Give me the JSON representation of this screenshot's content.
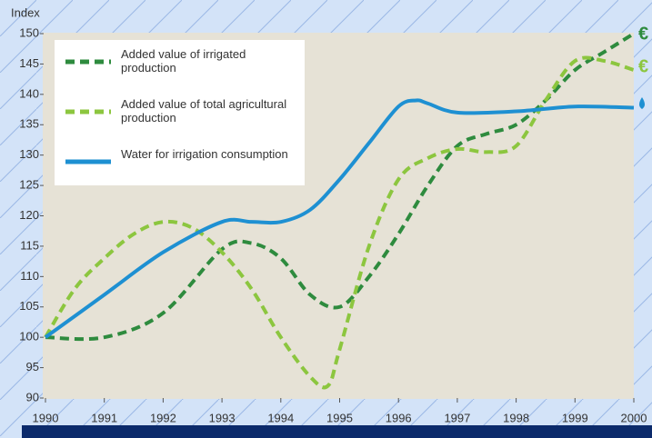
{
  "chart_data": {
    "type": "line",
    "y_label": "Index",
    "xlim": [
      1990,
      2000
    ],
    "xticks": [
      1990,
      1991,
      1992,
      1993,
      1994,
      1995,
      1996,
      1997,
      1998,
      1999,
      2000
    ],
    "ylim": [
      90,
      150
    ],
    "yticks": [
      90,
      95,
      100,
      105,
      110,
      115,
      120,
      125,
      130,
      135,
      140,
      145,
      150
    ],
    "series": [
      {
        "name": "Added value of irrigated production",
        "color": "#2e8b3e",
        "dash": true,
        "x": [
          1990,
          1991,
          1992,
          1993,
          1993.5,
          1994,
          1994.5,
          1995,
          1995.5,
          1996,
          1996.5,
          1997,
          1997.5,
          1998,
          1998.5,
          1999,
          1999.5,
          2000
        ],
        "values": [
          100,
          100,
          104,
          114.5,
          115.5,
          113,
          107,
          105,
          110,
          117,
          125,
          131.5,
          133.5,
          135,
          139,
          144,
          147,
          150
        ]
      },
      {
        "name": "Added value of total agricultural production",
        "color": "#8cc63f",
        "dash": true,
        "x": [
          1990,
          1990.5,
          1991,
          1991.5,
          1992,
          1992.5,
          1993,
          1993.5,
          1994,
          1994.5,
          1994.8,
          1995,
          1995.5,
          1996,
          1996.5,
          1997,
          1997.5,
          1998,
          1998.5,
          1999,
          1999.5,
          2000
        ],
        "values": [
          100,
          108,
          113,
          117,
          119,
          118,
          114,
          108,
          100,
          93.5,
          92,
          98,
          115,
          126,
          129.5,
          131,
          130.5,
          131.5,
          139,
          145.5,
          145.5,
          144
        ]
      },
      {
        "name": "Water for irrigation consumption",
        "color": "#1e90d2",
        "dash": false,
        "x": [
          1990,
          1991,
          1992,
          1993,
          1993.5,
          1994,
          1994.5,
          1995,
          1995.5,
          1996,
          1996.3,
          1996.5,
          1997,
          1998,
          1999,
          2000
        ],
        "values": [
          100,
          107,
          114,
          119,
          119,
          119,
          121,
          126,
          132,
          138,
          139,
          138.5,
          137,
          137.2,
          138,
          137.8
        ]
      }
    ]
  }
}
